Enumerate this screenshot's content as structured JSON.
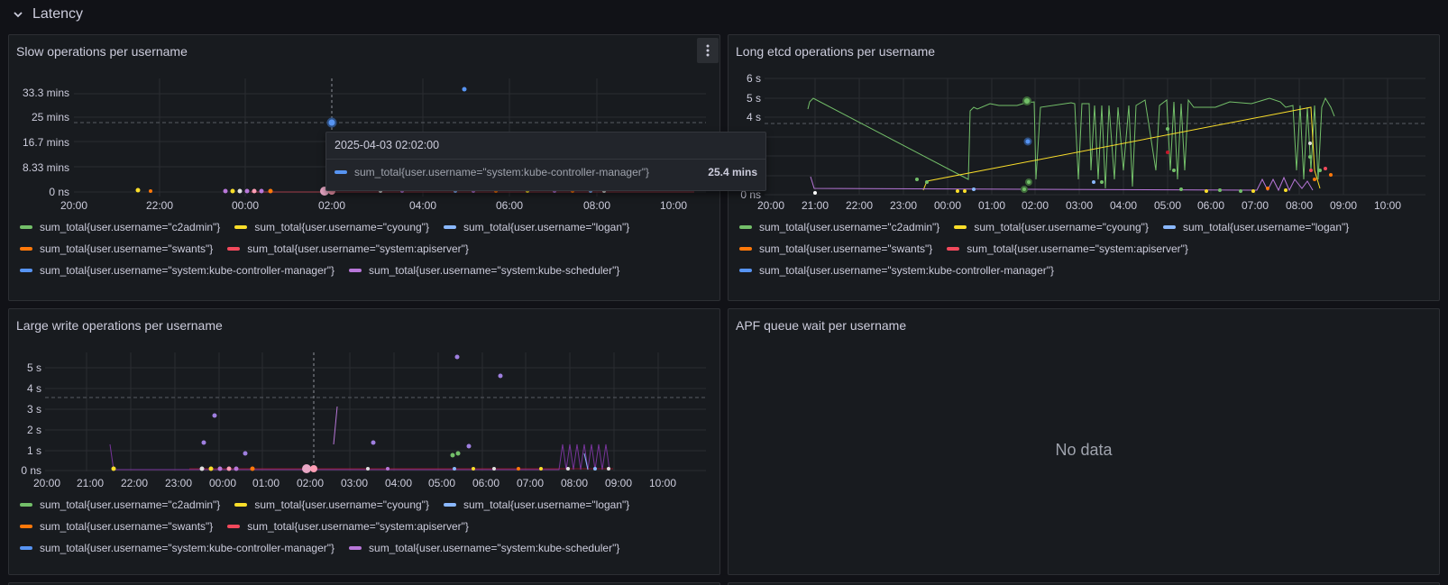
{
  "row": {
    "title": "Latency"
  },
  "colors": {
    "green": "#73bf69",
    "yellow": "#fade2a",
    "blue": "#8ab8ff",
    "orange": "#ff780a",
    "red": "#f2495c",
    "darkblue": "#5794f2",
    "purple": "#b877d9"
  },
  "legend_series": [
    "sum_total{user.username=\"c2admin\"}",
    "sum_total{user.username=\"cyoung\"}",
    "sum_total{user.username=\"logan\"}",
    "sum_total{user.username=\"swants\"}",
    "sum_total{user.username=\"system:apiserver\"}",
    "sum_total{user.username=\"system:kube-controller-manager\"}",
    "sum_total{user.username=\"system:kube-scheduler\"}"
  ],
  "panels": {
    "slow": {
      "title": "Slow operations per username",
      "tooltip": {
        "time": "2025-04-03 02:02:00",
        "series": "sum_total{user.username=\"system:kube-controller-manager\"}",
        "value": "25.4 mins"
      }
    },
    "etcd": {
      "title": "Long etcd operations per username"
    },
    "write": {
      "title": "Large write operations per username"
    },
    "apf": {
      "title": "APF queue wait per username",
      "no_data": "No data"
    }
  },
  "chart_data": [
    {
      "type": "scatter",
      "title": "Slow operations per username",
      "x_ticks": [
        "20:00",
        "22:00",
        "00:00",
        "02:00",
        "04:00",
        "06:00",
        "08:00",
        "10:00"
      ],
      "y_ticks": [
        "0 ns",
        "8.33 mins",
        "16.7 mins",
        "25 mins",
        "33.3 mins"
      ],
      "ylim": [
        0,
        38
      ],
      "threshold": 24.6,
      "cursor_x": "02:02",
      "points": [
        {
          "x": "21:30",
          "y": 0.4,
          "s": "cyoung"
        },
        {
          "x": "21:45",
          "y": 0.2,
          "s": "swants"
        },
        {
          "x": "23:45",
          "y": 0.3,
          "s": "system:kube-scheduler"
        },
        {
          "x": "00:00",
          "y": 0.2,
          "s": "cyoung"
        },
        {
          "x": "00:10",
          "y": 0.2,
          "s": "system:kube-scheduler"
        },
        {
          "x": "00:30",
          "y": 0.2,
          "s": "system:kube-scheduler"
        },
        {
          "x": "00:50",
          "y": 0.2,
          "s": "swants"
        },
        {
          "x": "01:05",
          "y": 0.2,
          "s": "swants"
        },
        {
          "x": "02:02",
          "y": 25.4,
          "s": "system:kube-controller-manager"
        },
        {
          "x": "02:02",
          "y": 0.3,
          "s": "system:kube-scheduler"
        },
        {
          "x": "03:30",
          "y": 0.2,
          "s": "logan"
        },
        {
          "x": "04:00",
          "y": 0.2,
          "s": "system:kube-scheduler"
        },
        {
          "x": "05:45",
          "y": 35,
          "s": "system:kube-controller-manager"
        },
        {
          "x": "05:50",
          "y": 0.2,
          "s": "logan"
        },
        {
          "x": "06:20",
          "y": 0.2,
          "s": "system:kube-scheduler"
        },
        {
          "x": "07:00",
          "y": 0.2,
          "s": "swants"
        },
        {
          "x": "07:40",
          "y": 0.2,
          "s": "cyoung"
        },
        {
          "x": "08:20",
          "y": 0.2,
          "s": "system:kube-scheduler"
        },
        {
          "x": "08:50",
          "y": 0.2,
          "s": "logan"
        }
      ]
    },
    {
      "type": "line",
      "title": "Long etcd operations per username",
      "x_ticks": [
        "20:00",
        "21:00",
        "22:00",
        "23:00",
        "00:00",
        "01:00",
        "02:00",
        "03:00",
        "04:00",
        "05:00",
        "06:00",
        "07:00",
        "08:00",
        "09:00",
        "10:00"
      ],
      "y_ticks": [
        "0 ns",
        "1 s",
        "2 s",
        "3 s",
        "4 s",
        "5 s",
        "6 s"
      ],
      "ylim": [
        0,
        6
      ],
      "threshold": 3.7,
      "series": [
        {
          "name": "sum_total{user.username=\"c2admin\"}",
          "x": [
            "00:45",
            "00:50",
            "01:20",
            "02:00",
            "02:05",
            "03:45",
            "04:10",
            "05:00",
            "05:40",
            "06:30",
            "07:30",
            "08:00",
            "08:15",
            "08:45",
            "09:00"
          ],
          "y": [
            0.8,
            4.5,
            4.5,
            4.7,
            0.2,
            4.7,
            0.5,
            4.8,
            0.6,
            4.6,
            4.6,
            4.7,
            0.6,
            5.2,
            3.9
          ]
        },
        {
          "name": "sum_total{user.username=\"cyoung\"}",
          "x": [
            "00:25",
            "00:35",
            "08:50",
            "09:00"
          ],
          "y": [
            0.0,
            0.4,
            4.0,
            0.2
          ]
        },
        {
          "name": "sum_total{user.username=\"system:kube-scheduler\"}",
          "x": [
            "21:30",
            "21:35",
            "08:00",
            "08:30",
            "09:00"
          ],
          "y": [
            0.8,
            0.1,
            0.2,
            0.7,
            0.3
          ]
        }
      ]
    },
    {
      "type": "scatter",
      "title": "Large write operations per username",
      "x_ticks": [
        "20:00",
        "21:00",
        "22:00",
        "23:00",
        "00:00",
        "01:00",
        "02:00",
        "03:00",
        "04:00",
        "05:00",
        "06:00",
        "07:00",
        "08:00",
        "09:00",
        "10:00"
      ],
      "y_ticks": [
        "0 ns",
        "1 s",
        "2 s",
        "3 s",
        "4 s",
        "5 s"
      ],
      "ylim": [
        0,
        5.6
      ],
      "threshold": 3.6,
      "cursor_x": "02:02",
      "points": [
        {
          "x": "21:30",
          "y": 0.1,
          "s": "cyoung"
        },
        {
          "x": "23:40",
          "y": 1.3,
          "s": "system:kube-scheduler"
        },
        {
          "x": "23:55",
          "y": 2.6,
          "s": "system:kube-scheduler"
        },
        {
          "x": "00:45",
          "y": 0.7,
          "s": "system:kube-scheduler"
        },
        {
          "x": "02:05",
          "y": 0.1,
          "s": "system:kube-scheduler"
        },
        {
          "x": "03:50",
          "y": 0.8,
          "s": "system:kube-scheduler"
        },
        {
          "x": "05:25",
          "y": 5.1,
          "s": "system:kube-scheduler"
        },
        {
          "x": "05:40",
          "y": 0.6,
          "s": "system:kube-scheduler"
        },
        {
          "x": "05:30",
          "y": 0.3,
          "s": "c2admin"
        },
        {
          "x": "06:25",
          "y": 4.2,
          "s": "system:kube-scheduler"
        },
        {
          "x": "07:00",
          "y": 0.1,
          "s": "cyoung"
        },
        {
          "x": "08:30",
          "y": 0.1,
          "s": "logan"
        }
      ]
    }
  ]
}
